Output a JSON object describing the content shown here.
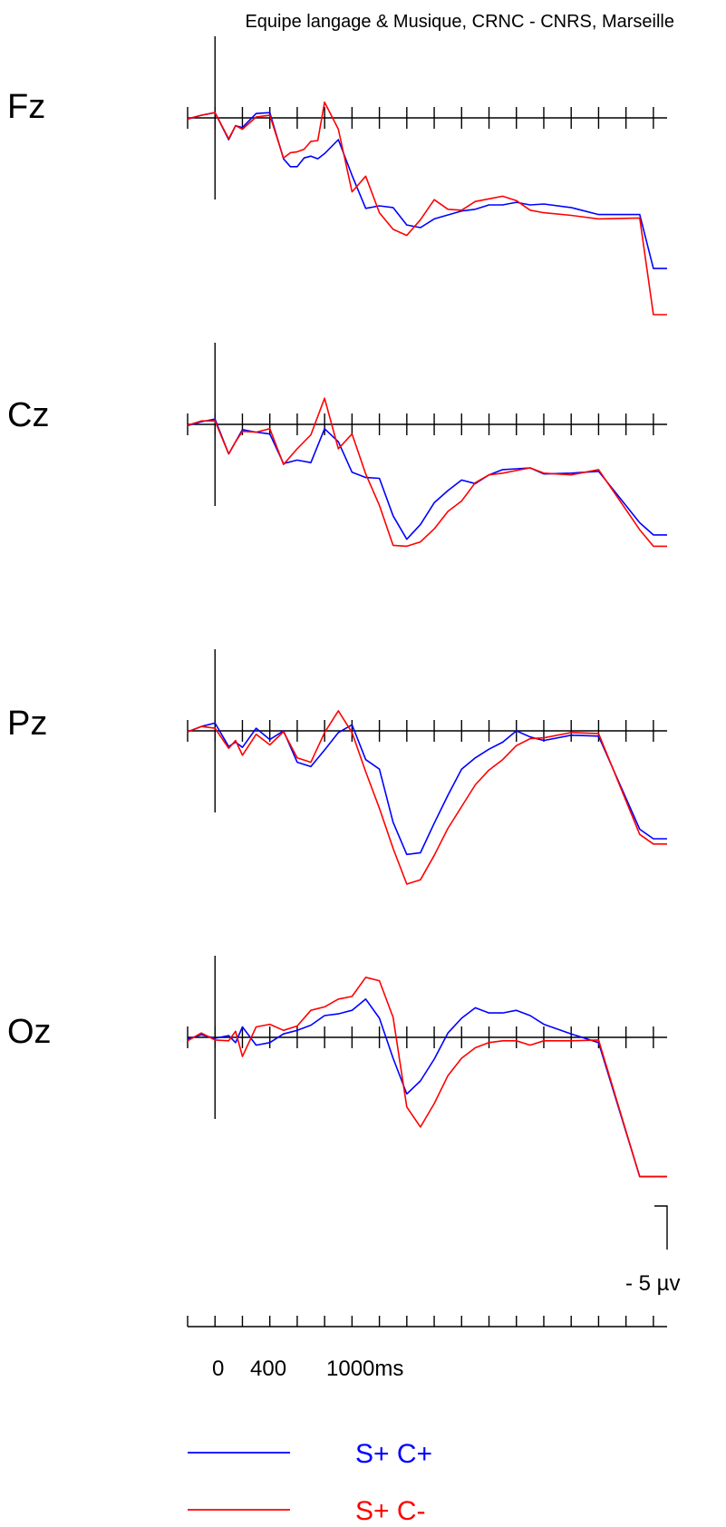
{
  "credit": "Equipe langage & Musique, CRNC - CNRS, Marseille",
  "chart_data": {
    "type": "line",
    "time_unit": "ms",
    "time_tick_labels": [
      "0",
      "400",
      "1000ms"
    ],
    "time_range_ms": [
      -200,
      3300
    ],
    "tick_interval_ms": 200,
    "amplitude_unit": "µV",
    "scale_bar": {
      "label": "- 5 µv",
      "value_uv": -5
    },
    "polarity": "negative up",
    "series": [
      {
        "name": "S+ C+",
        "color": "#0000ff"
      },
      {
        "name": "S+ C-",
        "color": "#ff0000"
      }
    ],
    "panels": [
      {
        "electrode": "Fz",
        "blue": [
          [
            -200,
            0.15
          ],
          [
            -100,
            -0.3
          ],
          [
            0,
            -0.6
          ],
          [
            100,
            2.5
          ],
          [
            150,
            0.9
          ],
          [
            200,
            1.1
          ],
          [
            300,
            -0.5
          ],
          [
            400,
            -0.6
          ],
          [
            500,
            4.7
          ],
          [
            550,
            5.6
          ],
          [
            600,
            5.6
          ],
          [
            650,
            4.6
          ],
          [
            700,
            4.4
          ],
          [
            750,
            4.7
          ],
          [
            800,
            4.1
          ],
          [
            900,
            2.5
          ],
          [
            1000,
            6.6
          ],
          [
            1100,
            10.4
          ],
          [
            1200,
            10.1
          ],
          [
            1300,
            10.3
          ],
          [
            1400,
            12.3
          ],
          [
            1500,
            12.6
          ],
          [
            1600,
            11.6
          ],
          [
            1800,
            10.7
          ],
          [
            1900,
            10.5
          ],
          [
            2000,
            10.0
          ],
          [
            2100,
            10.0
          ],
          [
            2200,
            9.7
          ],
          [
            2300,
            10.0
          ],
          [
            2400,
            9.9
          ],
          [
            2600,
            10.3
          ],
          [
            2800,
            11.1
          ],
          [
            3100,
            11.1
          ],
          [
            3200,
            17.3
          ],
          [
            3300,
            17.3
          ]
        ],
        "red": [
          [
            -200,
            0.1
          ],
          [
            -100,
            -0.3
          ],
          [
            0,
            -0.6
          ],
          [
            100,
            2.4
          ],
          [
            150,
            0.9
          ],
          [
            200,
            1.3
          ],
          [
            300,
            -0.1
          ],
          [
            400,
            -0.3
          ],
          [
            500,
            4.6
          ],
          [
            550,
            4.0
          ],
          [
            600,
            3.9
          ],
          [
            650,
            3.6
          ],
          [
            700,
            2.7
          ],
          [
            750,
            2.6
          ],
          [
            800,
            -1.8
          ],
          [
            900,
            1.3
          ],
          [
            1000,
            8.5
          ],
          [
            1100,
            6.7
          ],
          [
            1200,
            10.9
          ],
          [
            1300,
            12.8
          ],
          [
            1400,
            13.5
          ],
          [
            1500,
            11.7
          ],
          [
            1600,
            9.4
          ],
          [
            1700,
            10.5
          ],
          [
            1800,
            10.6
          ],
          [
            1900,
            9.6
          ],
          [
            2000,
            9.3
          ],
          [
            2100,
            9.0
          ],
          [
            2200,
            9.5
          ],
          [
            2300,
            10.6
          ],
          [
            2400,
            10.9
          ],
          [
            2600,
            11.2
          ],
          [
            2800,
            11.6
          ],
          [
            3100,
            11.5
          ],
          [
            3200,
            22.6
          ],
          [
            3300,
            22.6
          ]
        ]
      },
      {
        "electrode": "Cz",
        "blue": [
          [
            -200,
            0.15
          ],
          [
            -100,
            -0.3
          ],
          [
            0,
            -0.6
          ],
          [
            100,
            3.4
          ],
          [
            150,
            2.0
          ],
          [
            200,
            0.6
          ],
          [
            300,
            0.9
          ],
          [
            400,
            1.1
          ],
          [
            500,
            4.5
          ],
          [
            600,
            4.1
          ],
          [
            700,
            4.4
          ],
          [
            800,
            0.5
          ],
          [
            900,
            2.0
          ],
          [
            1000,
            5.5
          ],
          [
            1100,
            6.1
          ],
          [
            1200,
            6.2
          ],
          [
            1300,
            10.5
          ],
          [
            1400,
            13.2
          ],
          [
            1500,
            11.5
          ],
          [
            1600,
            9.0
          ],
          [
            1700,
            7.6
          ],
          [
            1800,
            6.4
          ],
          [
            1900,
            6.8
          ],
          [
            2000,
            5.8
          ],
          [
            2100,
            5.2
          ],
          [
            2200,
            5.1
          ],
          [
            2300,
            5.0
          ],
          [
            2400,
            5.7
          ],
          [
            2600,
            5.6
          ],
          [
            2800,
            5.4
          ],
          [
            3100,
            11.3
          ],
          [
            3200,
            12.7
          ],
          [
            3300,
            12.7
          ]
        ],
        "red": [
          [
            -200,
            0.1
          ],
          [
            -100,
            -0.4
          ],
          [
            0,
            -0.4
          ],
          [
            100,
            3.4
          ],
          [
            150,
            2.0
          ],
          [
            200,
            0.8
          ],
          [
            300,
            0.9
          ],
          [
            400,
            0.5
          ],
          [
            500,
            4.6
          ],
          [
            600,
            2.8
          ],
          [
            700,
            1.2
          ],
          [
            800,
            -3.0
          ],
          [
            900,
            2.8
          ],
          [
            1000,
            1.1
          ],
          [
            1100,
            5.7
          ],
          [
            1200,
            9.3
          ],
          [
            1300,
            13.9
          ],
          [
            1400,
            14.0
          ],
          [
            1500,
            13.5
          ],
          [
            1600,
            12.0
          ],
          [
            1700,
            10.0
          ],
          [
            1800,
            8.8
          ],
          [
            1900,
            6.7
          ],
          [
            2000,
            5.8
          ],
          [
            2100,
            5.6
          ],
          [
            2200,
            5.3
          ],
          [
            2300,
            5.0
          ],
          [
            2400,
            5.6
          ],
          [
            2600,
            5.8
          ],
          [
            2800,
            5.2
          ],
          [
            3100,
            12.1
          ],
          [
            3200,
            14.0
          ],
          [
            3300,
            14.0
          ]
        ]
      },
      {
        "electrode": "Pz",
        "blue": [
          [
            -200,
            0.1
          ],
          [
            -100,
            -0.5
          ],
          [
            0,
            -0.9
          ],
          [
            100,
            1.8
          ],
          [
            150,
            1.3
          ],
          [
            200,
            1.9
          ],
          [
            300,
            -0.3
          ],
          [
            400,
            1.0
          ],
          [
            500,
            0.0
          ],
          [
            600,
            3.6
          ],
          [
            700,
            4.1
          ],
          [
            800,
            2.2
          ],
          [
            900,
            0.2
          ],
          [
            1000,
            -0.7
          ],
          [
            1100,
            3.3
          ],
          [
            1200,
            4.4
          ],
          [
            1300,
            10.5
          ],
          [
            1400,
            14.2
          ],
          [
            1500,
            14.0
          ],
          [
            1600,
            10.6
          ],
          [
            1700,
            7.4
          ],
          [
            1800,
            4.4
          ],
          [
            1900,
            3.1
          ],
          [
            2000,
            2.1
          ],
          [
            2100,
            1.3
          ],
          [
            2200,
            0.0
          ],
          [
            2300,
            0.7
          ],
          [
            2400,
            1.1
          ],
          [
            2600,
            0.5
          ],
          [
            2800,
            0.6
          ],
          [
            3100,
            11.3
          ],
          [
            3200,
            12.4
          ],
          [
            3300,
            12.4
          ]
        ],
        "red": [
          [
            -200,
            0.1
          ],
          [
            -100,
            -0.5
          ],
          [
            0,
            -0.3
          ],
          [
            100,
            2.0
          ],
          [
            150,
            1.1
          ],
          [
            200,
            2.8
          ],
          [
            300,
            0.4
          ],
          [
            400,
            1.6
          ],
          [
            500,
            0.1
          ],
          [
            600,
            3.1
          ],
          [
            700,
            3.6
          ],
          [
            800,
            0.2
          ],
          [
            900,
            -2.3
          ],
          [
            1000,
            0.2
          ],
          [
            1100,
            4.7
          ],
          [
            1200,
            8.9
          ],
          [
            1300,
            13.5
          ],
          [
            1400,
            17.6
          ],
          [
            1500,
            17.1
          ],
          [
            1600,
            14.3
          ],
          [
            1700,
            11.2
          ],
          [
            1800,
            8.7
          ],
          [
            1900,
            6.2
          ],
          [
            2000,
            4.5
          ],
          [
            2100,
            3.3
          ],
          [
            2200,
            1.7
          ],
          [
            2300,
            0.9
          ],
          [
            2400,
            0.8
          ],
          [
            2600,
            0.2
          ],
          [
            2800,
            0.3
          ],
          [
            3100,
            11.9
          ],
          [
            3200,
            13.0
          ],
          [
            3300,
            13.0
          ]
        ]
      },
      {
        "electrode": "Oz",
        "blue": [
          [
            -200,
            0.2
          ],
          [
            -100,
            -0.3
          ],
          [
            0,
            0.1
          ],
          [
            100,
            -0.2
          ],
          [
            150,
            0.6
          ],
          [
            200,
            -1.2
          ],
          [
            300,
            0.9
          ],
          [
            400,
            0.6
          ],
          [
            500,
            -0.4
          ],
          [
            600,
            -0.8
          ],
          [
            700,
            -1.4
          ],
          [
            800,
            -2.5
          ],
          [
            900,
            -2.7
          ],
          [
            1000,
            -3.1
          ],
          [
            1100,
            -4.4
          ],
          [
            1200,
            -2.2
          ],
          [
            1300,
            2.4
          ],
          [
            1400,
            6.5
          ],
          [
            1500,
            5.0
          ],
          [
            1600,
            2.5
          ],
          [
            1700,
            -0.5
          ],
          [
            1800,
            -2.2
          ],
          [
            1900,
            -3.4
          ],
          [
            2000,
            -2.8
          ],
          [
            2100,
            -2.8
          ],
          [
            2200,
            -3.1
          ],
          [
            2300,
            -2.5
          ],
          [
            2400,
            -1.5
          ],
          [
            2600,
            -0.4
          ],
          [
            2800,
            0.6
          ],
          [
            3100,
            16.0
          ],
          [
            3200,
            16.0
          ],
          [
            3300,
            16.0
          ]
        ],
        "red": [
          [
            -200,
            0.4
          ],
          [
            -100,
            -0.5
          ],
          [
            0,
            0.3
          ],
          [
            100,
            0.4
          ],
          [
            150,
            -0.7
          ],
          [
            200,
            2.2
          ],
          [
            300,
            -1.2
          ],
          [
            400,
            -1.5
          ],
          [
            500,
            -0.8
          ],
          [
            600,
            -1.3
          ],
          [
            700,
            -3.1
          ],
          [
            800,
            -3.5
          ],
          [
            900,
            -4.4
          ],
          [
            1000,
            -4.7
          ],
          [
            1100,
            -6.9
          ],
          [
            1200,
            -6.5
          ],
          [
            1300,
            -2.3
          ],
          [
            1400,
            8.0
          ],
          [
            1500,
            10.3
          ],
          [
            1600,
            7.6
          ],
          [
            1700,
            4.4
          ],
          [
            1800,
            2.4
          ],
          [
            1900,
            1.2
          ],
          [
            2000,
            0.6
          ],
          [
            2100,
            0.4
          ],
          [
            2200,
            0.4
          ],
          [
            2300,
            0.9
          ],
          [
            2400,
            0.4
          ],
          [
            2600,
            0.4
          ],
          [
            2800,
            0.3
          ],
          [
            3100,
            16.0
          ],
          [
            3200,
            16.0
          ],
          [
            3300,
            16.0
          ]
        ]
      }
    ]
  }
}
